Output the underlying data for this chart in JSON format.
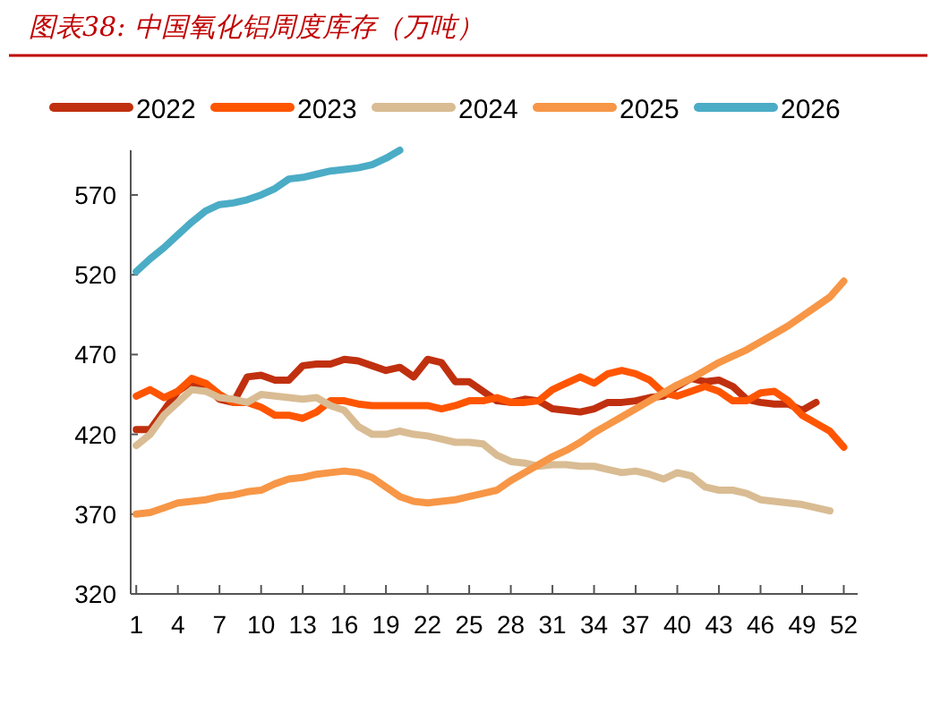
{
  "chart_data": {
    "type": "line",
    "title": "图表38:  中国氧化铝周度库存（万吨）",
    "x": [
      1,
      2,
      3,
      4,
      5,
      6,
      7,
      8,
      9,
      10,
      11,
      12,
      13,
      14,
      15,
      16,
      17,
      18,
      19,
      20,
      21,
      22,
      23,
      24,
      25,
      26,
      27,
      28,
      29,
      30,
      31,
      32,
      33,
      34,
      35,
      36,
      37,
      38,
      39,
      40,
      41,
      42,
      43,
      44,
      45,
      46,
      47,
      48,
      49,
      50,
      51,
      52
    ],
    "xlim": [
      0.6,
      53
    ],
    "xticks": [
      1,
      4,
      7,
      10,
      13,
      16,
      19,
      22,
      25,
      28,
      31,
      34,
      37,
      40,
      43,
      46,
      49,
      52
    ],
    "ylim": [
      320,
      598
    ],
    "yticks": [
      320,
      370,
      420,
      470,
      520,
      570
    ],
    "legend": "top",
    "marker": "none",
    "line_style": "solid",
    "series": [
      {
        "name": "2022",
        "color": "#c0300f",
        "values": [
          423,
          423,
          435,
          447,
          453,
          450,
          442,
          440,
          456,
          457,
          454,
          454,
          463,
          464,
          464,
          467,
          466,
          463,
          460,
          462,
          456,
          467,
          465,
          453,
          453,
          447,
          441,
          440,
          442,
          441,
          436,
          435,
          434,
          436,
          440,
          440,
          441,
          443,
          444,
          450,
          455,
          453,
          454,
          450,
          442,
          440,
          439,
          439,
          435,
          440,
          null,
          null
        ]
      },
      {
        "name": "2023",
        "color": "#ff5500",
        "values": [
          444,
          448,
          443,
          447,
          455,
          452,
          445,
          440,
          440,
          437,
          432,
          432,
          430,
          434,
          441,
          441,
          439,
          438,
          438,
          438,
          438,
          438,
          436,
          438,
          441,
          441,
          443,
          440,
          440,
          441,
          448,
          452,
          456,
          452,
          458,
          460,
          458,
          454,
          446,
          444,
          447,
          450,
          447,
          441,
          441,
          446,
          447,
          441,
          432,
          427,
          422,
          412
        ]
      },
      {
        "name": "2024",
        "color": "#d9bc93",
        "values": [
          413,
          420,
          432,
          440,
          448,
          447,
          443,
          442,
          440,
          445,
          444,
          443,
          442,
          443,
          438,
          435,
          425,
          420,
          420,
          422,
          420,
          419,
          417,
          415,
          415,
          414,
          407,
          403,
          402,
          400,
          401,
          401,
          400,
          400,
          398,
          396,
          397,
          395,
          392,
          396,
          394,
          387,
          385,
          385,
          383,
          379,
          378,
          377,
          376,
          374,
          372,
          null
        ]
      },
      {
        "name": "2025",
        "color": "#f79646",
        "values": [
          370,
          371,
          374,
          377,
          378,
          379,
          381,
          382,
          384,
          385,
          389,
          392,
          393,
          395,
          396,
          397,
          396,
          393,
          387,
          381,
          378,
          377,
          378,
          379,
          381,
          383,
          385,
          391,
          396,
          401,
          406,
          410,
          415,
          421,
          426,
          431,
          436,
          441,
          446,
          451,
          455,
          460,
          465,
          469,
          473,
          478,
          483,
          488,
          494,
          500,
          506,
          516
        ]
      },
      {
        "name": "2026",
        "color": "#4bacc6",
        "values": [
          522,
          530,
          537,
          545,
          553,
          560,
          564,
          565,
          567,
          570,
          574,
          580,
          581,
          583,
          585,
          586,
          587,
          589,
          593,
          598,
          null,
          null,
          null,
          null,
          null,
          null,
          null,
          null,
          null,
          null,
          null,
          null,
          null,
          null,
          null,
          null,
          null,
          null,
          null,
          null,
          null,
          null,
          null,
          null,
          null,
          null,
          null,
          null,
          null,
          null,
          null,
          null
        ]
      }
    ]
  }
}
